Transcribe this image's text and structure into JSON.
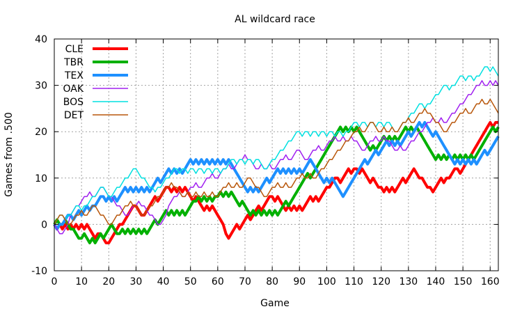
{
  "chart_data": {
    "type": "line",
    "title": "AL wildcard race",
    "xlabel": "Game",
    "ylabel": "Games from .500",
    "xlim": [
      0,
      163
    ],
    "ylim": [
      -10,
      40
    ],
    "x_ticks": [
      0,
      10,
      20,
      30,
      40,
      50,
      60,
      70,
      80,
      90,
      100,
      110,
      120,
      130,
      140,
      150,
      160
    ],
    "y_ticks": [
      -10,
      0,
      10,
      20,
      30,
      40
    ],
    "grid": true,
    "legend_position": "top-left",
    "series": [
      {
        "name": "CLE",
        "color": "#ff0000",
        "width": "thick",
        "x": [
          0,
          4,
          8,
          12,
          14,
          17,
          20,
          25,
          30,
          33,
          37,
          42,
          46,
          50,
          54,
          58,
          63,
          67,
          71,
          75,
          80,
          84,
          90,
          94,
          98,
          101,
          104,
          108,
          111,
          115,
          120,
          124,
          128,
          132,
          135,
          138,
          142,
          145,
          148,
          152,
          156,
          160,
          163
        ],
        "values": [
          0,
          0,
          0,
          0,
          -2,
          -2,
          -4,
          0,
          4,
          2,
          6,
          8,
          8,
          6,
          4,
          4,
          -2,
          0,
          2,
          4,
          6,
          4,
          4,
          6,
          6,
          8,
          10,
          12,
          12,
          10,
          8,
          8,
          10,
          12,
          10,
          8,
          10,
          10,
          12,
          14,
          18,
          22,
          22
        ]
      },
      {
        "name": "TBR",
        "color": "#00b000",
        "width": "thick",
        "x": [
          0,
          3,
          7,
          10,
          13,
          16,
          20,
          24,
          28,
          32,
          36,
          40,
          44,
          48,
          52,
          56,
          60,
          64,
          68,
          72,
          76,
          80,
          84,
          88,
          92,
          96,
          100,
          104,
          108,
          112,
          116,
          120,
          124,
          128,
          132,
          136,
          140,
          144,
          148,
          152,
          156,
          160,
          163
        ],
        "values": [
          0,
          0,
          -1,
          -3,
          -4,
          -3,
          -1,
          -2,
          -2,
          -2,
          0,
          2,
          2,
          2,
          5,
          5,
          6,
          6,
          4,
          2,
          2,
          2,
          4,
          6,
          10,
          12,
          16,
          20,
          20,
          20,
          16,
          18,
          18,
          20,
          20,
          18,
          14,
          14,
          14,
          14,
          16,
          20,
          21
        ]
      },
      {
        "name": "TEX",
        "color": "#1e90ff",
        "width": "thick",
        "x": [
          0,
          3,
          6,
          9,
          12,
          15,
          18,
          22,
          26,
          30,
          34,
          38,
          42,
          46,
          50,
          54,
          58,
          62,
          66,
          70,
          74,
          78,
          82,
          86,
          90,
          94,
          98,
          102,
          106,
          110,
          114,
          118,
          122,
          126,
          130,
          134,
          138,
          142,
          146,
          150,
          154,
          158,
          163
        ],
        "values": [
          0,
          0,
          2,
          3,
          4,
          4,
          6,
          6,
          8,
          8,
          8,
          10,
          12,
          12,
          14,
          14,
          14,
          14,
          12,
          8,
          8,
          10,
          12,
          12,
          12,
          14,
          10,
          10,
          6,
          10,
          14,
          16,
          18,
          18,
          20,
          22,
          20,
          18,
          14,
          14,
          14,
          16,
          19
        ]
      },
      {
        "name": "OAK",
        "color": "#a020f0",
        "width": "thin",
        "x": [
          0,
          3,
          6,
          9,
          12,
          15,
          18,
          21,
          24,
          27,
          30,
          33,
          36,
          39,
          42,
          45,
          48,
          51,
          54,
          57,
          60,
          63,
          66,
          69,
          72,
          75,
          78,
          81,
          84,
          87,
          90,
          93,
          96,
          99,
          102,
          105,
          108,
          111,
          114,
          117,
          120,
          123,
          126,
          129,
          132,
          135,
          138,
          141,
          144,
          147,
          150,
          153,
          156,
          159,
          163
        ],
        "values": [
          0,
          -2,
          2,
          4,
          6,
          6,
          8,
          6,
          4,
          2,
          4,
          4,
          2,
          0,
          4,
          6,
          6,
          8,
          8,
          10,
          10,
          12,
          12,
          14,
          14,
          12,
          12,
          12,
          14,
          14,
          16,
          14,
          16,
          16,
          18,
          18,
          18,
          18,
          16,
          18,
          18,
          18,
          16,
          16,
          18,
          20,
          22,
          22,
          22,
          24,
          26,
          28,
          30,
          30,
          30
        ]
      },
      {
        "name": "BOS",
        "color": "#00e0e0",
        "width": "thin",
        "x": [
          0,
          3,
          6,
          9,
          12,
          15,
          18,
          21,
          24,
          27,
          30,
          33,
          36,
          39,
          42,
          45,
          48,
          51,
          54,
          57,
          60,
          63,
          66,
          69,
          72,
          75,
          78,
          81,
          84,
          87,
          90,
          93,
          96,
          99,
          102,
          105,
          108,
          111,
          114,
          117,
          120,
          123,
          126,
          129,
          132,
          135,
          138,
          141,
          144,
          147,
          150,
          153,
          156,
          159,
          163
        ],
        "values": [
          0,
          2,
          2,
          4,
          4,
          6,
          8,
          6,
          8,
          10,
          12,
          10,
          8,
          8,
          10,
          12,
          12,
          12,
          12,
          12,
          12,
          12,
          14,
          14,
          14,
          14,
          12,
          14,
          16,
          18,
          20,
          20,
          20,
          20,
          20,
          20,
          20,
          22,
          22,
          22,
          22,
          22,
          20,
          22,
          24,
          26,
          26,
          28,
          30,
          30,
          32,
          32,
          32,
          34,
          32
        ]
      },
      {
        "name": "DET",
        "color": "#b8560a",
        "width": "thin",
        "x": [
          0,
          3,
          6,
          9,
          12,
          15,
          18,
          21,
          24,
          27,
          30,
          33,
          36,
          39,
          42,
          45,
          48,
          51,
          54,
          57,
          60,
          63,
          66,
          69,
          72,
          75,
          78,
          81,
          84,
          87,
          90,
          93,
          96,
          99,
          102,
          105,
          108,
          111,
          114,
          117,
          120,
          123,
          126,
          129,
          132,
          135,
          138,
          141,
          144,
          147,
          150,
          153,
          156,
          159,
          163
        ],
        "values": [
          0,
          2,
          0,
          2,
          2,
          4,
          2,
          0,
          2,
          4,
          4,
          2,
          4,
          6,
          8,
          8,
          6,
          6,
          6,
          6,
          6,
          8,
          8,
          8,
          10,
          8,
          6,
          8,
          8,
          8,
          10,
          10,
          10,
          12,
          14,
          16,
          18,
          20,
          20,
          22,
          20,
          20,
          20,
          22,
          22,
          24,
          24,
          22,
          20,
          22,
          24,
          24,
          26,
          26,
          24
        ]
      }
    ]
  }
}
